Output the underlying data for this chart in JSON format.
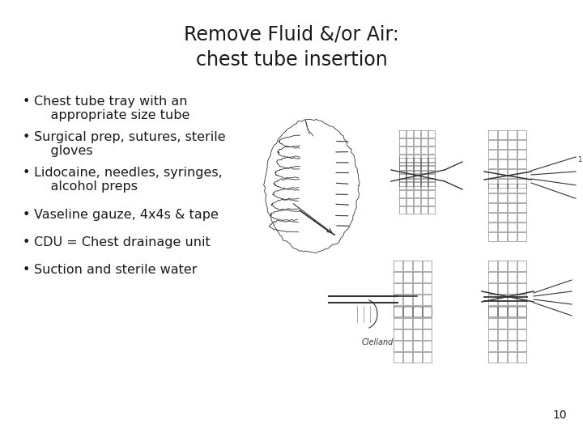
{
  "title_line1": "Remove Fluid &/or Air:",
  "title_line2": "chest tube insertion",
  "bullet_points": [
    "Chest tube tray with an\n    appropriate size tube",
    "Surgical prep, sutures, sterile\n    gloves",
    "Lidocaine, needles, syringes,\n    alcohol preps",
    "Vaseline gauze, 4x4s & tape",
    "CDU = Chest drainage unit",
    "Suction and sterile water"
  ],
  "page_number": "10",
  "background_color": "#ffffff",
  "text_color": "#1a1a1a",
  "sketch_color": "#333333",
  "title_fontsize": 17,
  "bullet_fontsize": 11.5,
  "page_num_fontsize": 10
}
